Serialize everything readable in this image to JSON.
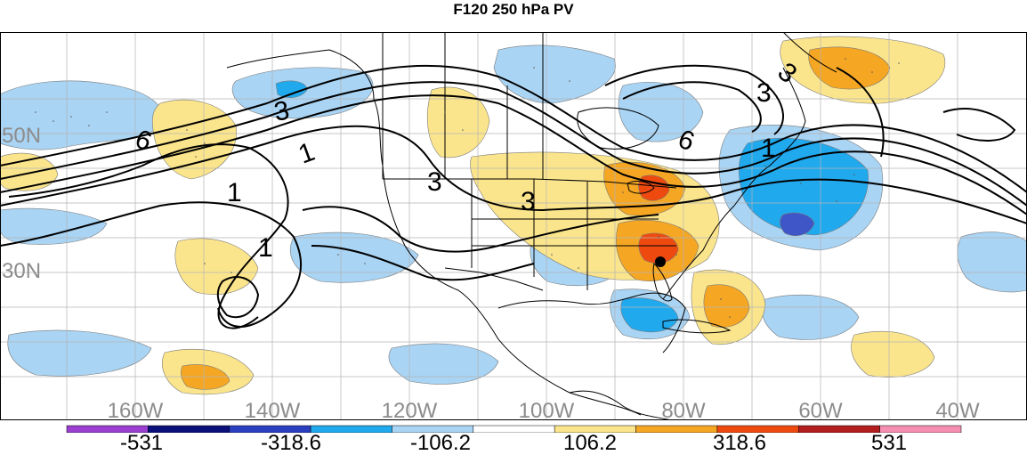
{
  "title": "F120 250 hPa PV",
  "lat_labels": [
    "50N",
    "30N"
  ],
  "lon_labels": [
    "160W",
    "140W",
    "120W",
    "100W",
    "80W",
    "60W",
    "40W"
  ],
  "contour_labels": [
    "6",
    "3",
    "1",
    "1",
    "1",
    "3",
    "3",
    "6",
    "3",
    "3",
    "1"
  ],
  "colorbar": {
    "tick_labels": [
      "-531",
      "-318.6",
      "-106.2",
      "106.2",
      "318.6",
      "531"
    ],
    "colors": [
      "#9a3fcf",
      "#0a0f7a",
      "#2a3ec0",
      "#21a9ee",
      "#a9d4f4",
      "#ffffff",
      "#fbe58c",
      "#f5a623",
      "#ee4a10",
      "#b21e1e",
      "#f48fb1"
    ]
  },
  "colors": {
    "light_blue": "#a9d4f4",
    "mid_blue": "#21a9ee",
    "dark_blue": "#3e56c8",
    "light_yellow": "#fbe58c",
    "orange": "#f5a623",
    "red": "#ee4a10",
    "grid": "#b4b4b4",
    "label_gray": "#8c8c8c"
  }
}
